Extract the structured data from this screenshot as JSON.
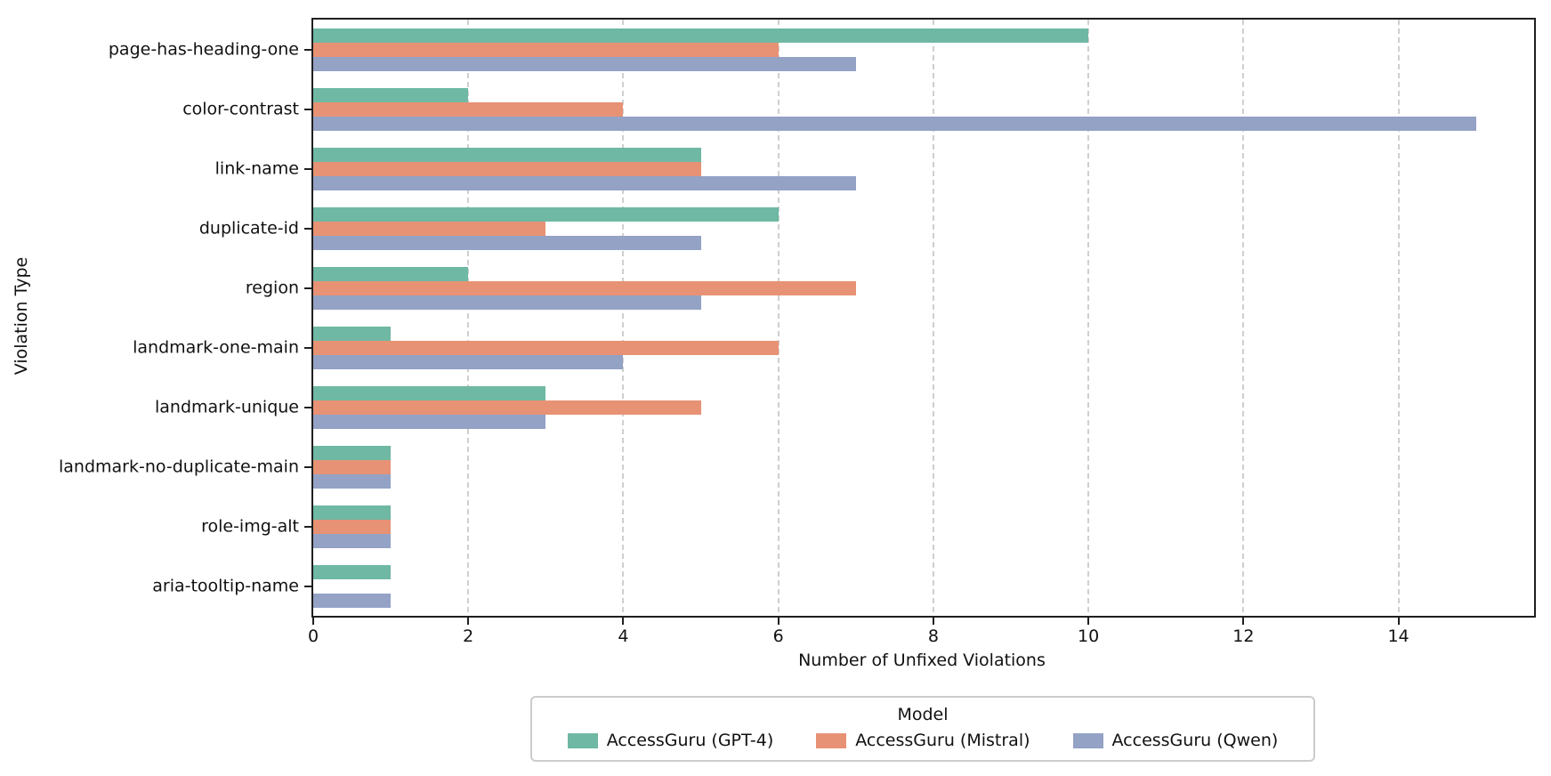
{
  "chart_data": {
    "type": "bar",
    "orientation": "horizontal",
    "xlabel": "Number of Unfixed Violations",
    "ylabel": "Violation Type",
    "xlim": [
      0,
      15.75
    ],
    "xticks": [
      0,
      2,
      4,
      6,
      8,
      10,
      12,
      14
    ],
    "grid": "vertical dashed gridlines at x ticks",
    "legend_position": "bottom-center",
    "legend_title": "Model",
    "categories": [
      "page-has-heading-one",
      "color-contrast",
      "link-name",
      "duplicate-id",
      "region",
      "landmark-one-main",
      "landmark-unique",
      "landmark-no-duplicate-main",
      "role-img-alt",
      "aria-tooltip-name"
    ],
    "series": [
      {
        "name": "AccessGuru (GPT-4)",
        "color": "#6fb8a3",
        "values": [
          10,
          2,
          5,
          6,
          2,
          1,
          3,
          1,
          1,
          1
        ]
      },
      {
        "name": "AccessGuru (Mistral)",
        "color": "#e89275",
        "values": [
          6,
          4,
          5,
          3,
          7,
          6,
          5,
          1,
          1,
          0
        ]
      },
      {
        "name": "AccessGuru (Qwen)",
        "color": "#93a2c5",
        "values": [
          7,
          15,
          7,
          5,
          5,
          4,
          3,
          1,
          1,
          1
        ]
      }
    ],
    "colors": {
      "spine": "#1f1f1f",
      "gridline": "#cfcfcf",
      "legend_border": "#cccccc",
      "background": "#ffffff"
    }
  }
}
